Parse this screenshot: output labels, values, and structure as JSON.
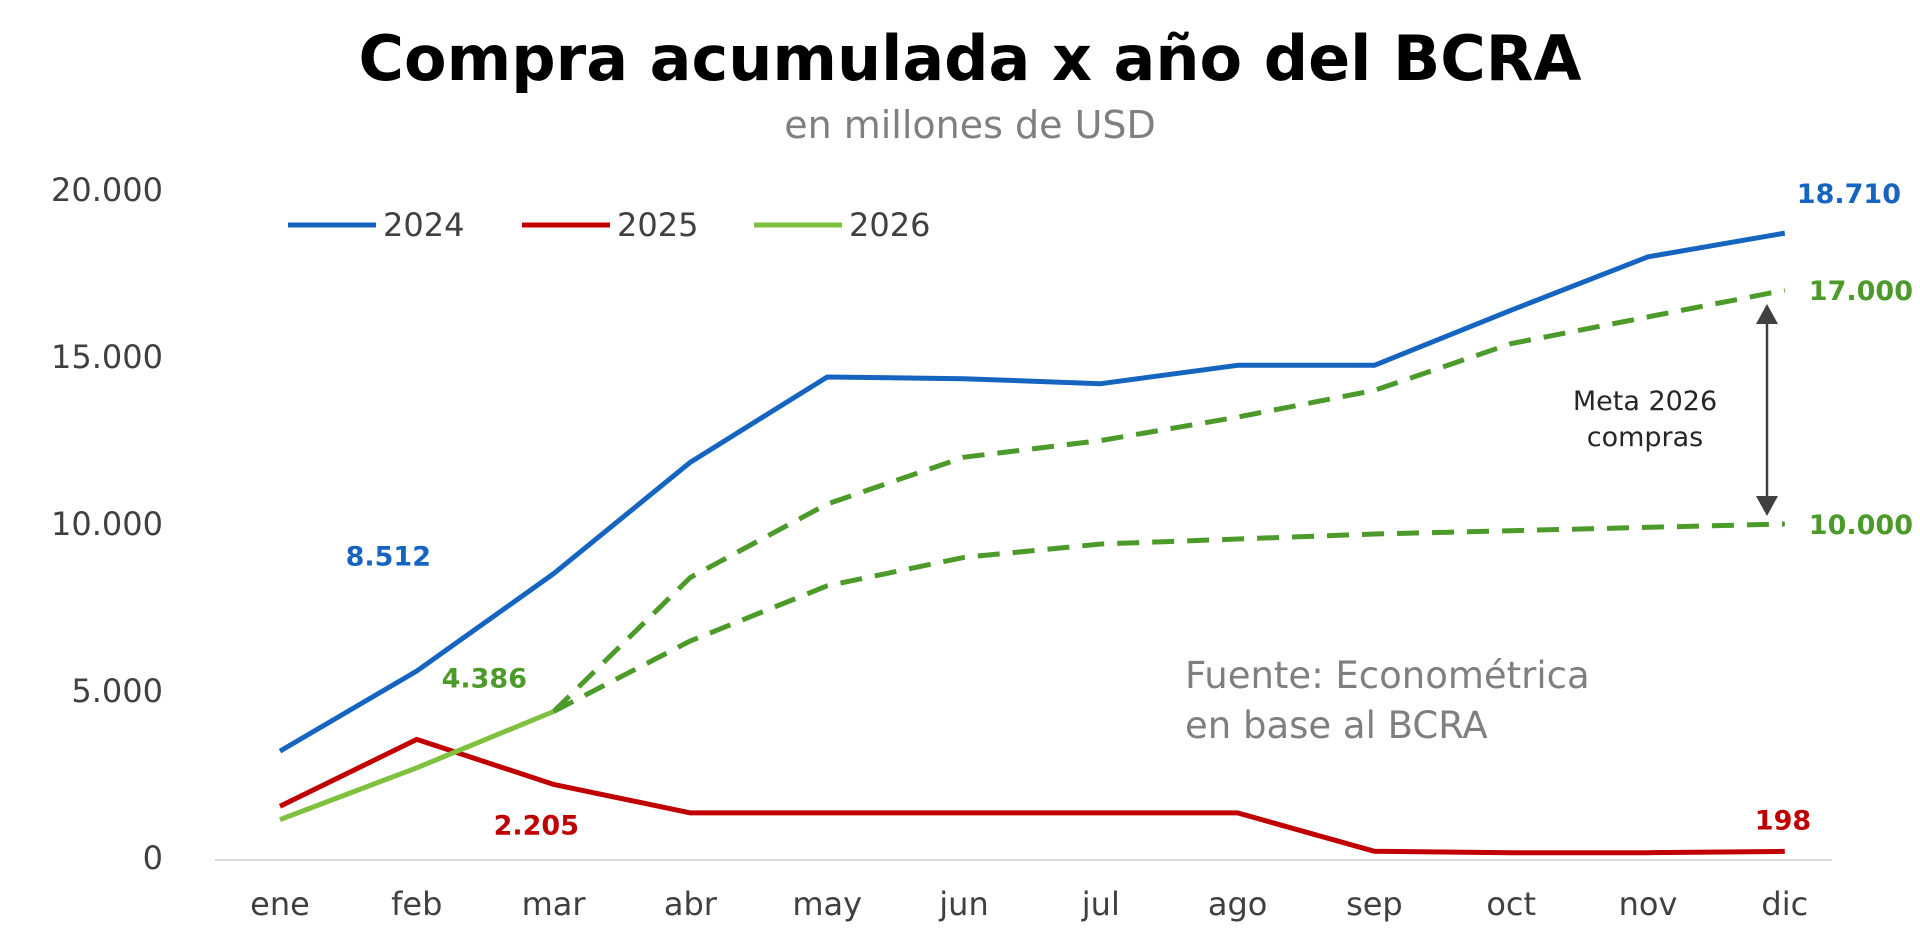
{
  "chart_data": {
    "type": "line",
    "title": "Compra acumulada x año del BCRA",
    "subtitle": "en millones de USD",
    "categories": [
      "ene",
      "feb",
      "mar",
      "abr",
      "may",
      "jun",
      "jul",
      "ago",
      "sep",
      "oct",
      "nov",
      "dic"
    ],
    "ylim": [
      0,
      20000
    ],
    "yticks": [
      {
        "value": 0,
        "label": "0"
      },
      {
        "value": 5000,
        "label": "5.000"
      },
      {
        "value": 10000,
        "label": "10.000"
      },
      {
        "value": 15000,
        "label": "15.000"
      },
      {
        "value": 20000,
        "label": "20.000"
      }
    ],
    "grid": false,
    "legend_position": "top-left",
    "series": [
      {
        "name": "2024",
        "color": "#1565c0",
        "style": "solid",
        "values": [
          3200,
          5600,
          8512,
          11850,
          14400,
          14350,
          14200,
          14750,
          14750,
          16400,
          18000,
          18710
        ]
      },
      {
        "name": "2025",
        "color": "#c00000",
        "style": "solid",
        "values": [
          1550,
          3550,
          2205,
          1350,
          1350,
          1350,
          1350,
          1350,
          200,
          160,
          160,
          198
        ]
      },
      {
        "name": "2026",
        "color": "#7ec13e",
        "style": "solid",
        "values": [
          1150,
          2700,
          4386,
          null,
          null,
          null,
          null,
          null,
          null,
          null,
          null,
          null
        ]
      }
    ],
    "projections": [
      {
        "name": "",
        "color": "#4c9a2a",
        "style": "dashed",
        "values": [
          null,
          null,
          4386,
          8400,
          10600,
          12000,
          12500,
          13200,
          14000,
          15400,
          16200,
          17000
        ]
      },
      {
        "name": "",
        "color": "#4c9a2a",
        "style": "dashed",
        "values": [
          null,
          null,
          4386,
          6500,
          8150,
          9000,
          9400,
          9550,
          9700,
          9800,
          9900,
          10000
        ]
      }
    ],
    "data_labels": [
      {
        "series": "2024",
        "category": "mar",
        "text": "8.512",
        "color": "#1565c0"
      },
      {
        "series": "2024",
        "category": "dic",
        "text": "18.710",
        "color": "#1565c0"
      },
      {
        "series": "2025",
        "category": "mar",
        "text": "2.205",
        "color": "#c00000"
      },
      {
        "series": "2025",
        "category": "dic",
        "text": "198",
        "color": "#c00000"
      },
      {
        "series": "2026",
        "category": "mar",
        "text": "4.386",
        "color": "#4c9a2a"
      },
      {
        "series": "proj-high",
        "category": "dic",
        "text": "17.000",
        "color": "#4c9a2a"
      },
      {
        "series": "proj-low",
        "category": "dic",
        "text": "10.000",
        "color": "#4c9a2a"
      }
    ],
    "annotations": {
      "meta_line1": "Meta 2026",
      "meta_line2": "compras",
      "source_line1": "Fuente: Econométrica",
      "source_line2": "en base al BCRA"
    }
  }
}
